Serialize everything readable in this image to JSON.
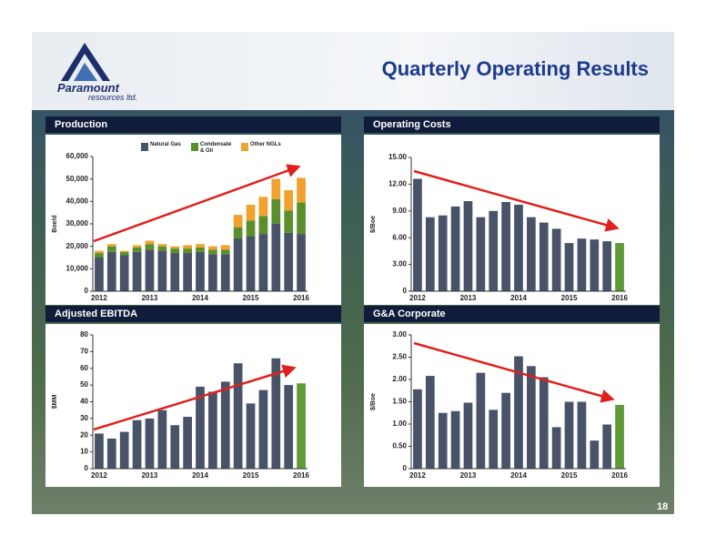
{
  "header": {
    "title": "Quarterly Operating Results",
    "logo_name": "Paramount",
    "logo_sub": "resources ltd."
  },
  "page_number": "18",
  "chart_data": [
    {
      "type": "stacked_bar",
      "title": "Production",
      "y_label": "Boe/d",
      "categories": [
        "2012",
        null,
        null,
        null,
        "2013",
        null,
        null,
        null,
        "2014",
        null,
        null,
        null,
        "2015",
        null,
        null,
        null,
        "2016"
      ],
      "series": [
        {
          "name": "Natural Gas",
          "color": "#48536a",
          "values": [
            15000,
            17500,
            16000,
            17500,
            18500,
            18000,
            17000,
            17000,
            17500,
            16500,
            16500,
            23500,
            24500,
            25500,
            30000,
            26000,
            25500
          ]
        },
        {
          "name": "Condensate & Oil",
          "color": "#5b8f2c",
          "values": [
            2000,
            2500,
            1500,
            2000,
            2500,
            2000,
            2000,
            2000,
            2000,
            2000,
            2000,
            5000,
            7000,
            8000,
            11000,
            10000,
            14000
          ]
        },
        {
          "name": "Other NGLs",
          "color": "#f0a12e",
          "values": [
            1000,
            1000,
            500,
            1000,
            1500,
            1000,
            1000,
            1500,
            1500,
            1500,
            2000,
            5500,
            7000,
            8500,
            9000,
            9000,
            11000
          ]
        }
      ],
      "ylim": [
        0,
        60000
      ],
      "yticks": [
        0,
        {
          "value": 10000,
          "label": "10,000"
        },
        {
          "value": 20000,
          "label": "20,000"
        },
        {
          "value": 30000,
          "label": "30,000"
        },
        {
          "value": 40000,
          "label": "40,000"
        },
        {
          "value": 50000,
          "label": "50,000"
        },
        {
          "value": 60000,
          "label": "60,000"
        }
      ],
      "grid": false
    },
    {
      "type": "bar",
      "title": "Operating Costs",
      "y_label": "$/Boe",
      "categories": [
        "2012",
        null,
        null,
        null,
        "2013",
        null,
        null,
        null,
        "2014",
        null,
        null,
        null,
        "2015",
        null,
        null,
        null,
        "2016"
      ],
      "values": [
        12.6,
        8.3,
        8.5,
        9.5,
        10.1,
        8.3,
        9.0,
        10.0,
        9.7,
        8.3,
        7.7,
        7.0,
        5.4,
        5.9,
        5.8,
        5.6,
        5.4
      ],
      "colors": [
        "#48536a",
        "#48536a",
        "#48536a",
        "#48536a",
        "#48536a",
        "#48536a",
        "#48536a",
        "#48536a",
        "#48536a",
        "#48536a",
        "#48536a",
        "#48536a",
        "#48536a",
        "#48536a",
        "#48536a",
        "#48536a",
        "#5f9a35"
      ],
      "ylim": [
        0,
        15
      ],
      "yticks": [
        0,
        {
          "value": 3,
          "label": "3.00"
        },
        {
          "value": 6,
          "label": "6.00"
        },
        {
          "value": 9,
          "label": "9.00"
        },
        {
          "value": 12,
          "label": "12.00"
        },
        {
          "value": 15,
          "label": "15.00"
        }
      ],
      "grid": false
    },
    {
      "type": "bar",
      "title": "Adjusted EBITDA",
      "y_label": "$MM",
      "categories": [
        "2012",
        null,
        null,
        null,
        "2013",
        null,
        null,
        null,
        "2014",
        null,
        null,
        null,
        "2015",
        null,
        null,
        null,
        "2016"
      ],
      "values": [
        21,
        18,
        22,
        29,
        30,
        35,
        26,
        31,
        49,
        46,
        52,
        63,
        39,
        47,
        66,
        50,
        51
      ],
      "colors": [
        "#48536a",
        "#48536a",
        "#48536a",
        "#48536a",
        "#48536a",
        "#48536a",
        "#48536a",
        "#48536a",
        "#48536a",
        "#48536a",
        "#48536a",
        "#48536a",
        "#48536a",
        "#48536a",
        "#48536a",
        "#48536a",
        "#5f9a35"
      ],
      "ylim": [
        0,
        80
      ],
      "yticks": [
        0,
        10,
        20,
        30,
        40,
        50,
        60,
        70,
        80
      ],
      "grid": false
    },
    {
      "type": "bar",
      "title": "G&A Corporate",
      "y_label": "$/Boe",
      "categories": [
        "2012",
        null,
        null,
        null,
        "2013",
        null,
        null,
        null,
        "2014",
        null,
        null,
        null,
        "2015",
        null,
        null,
        null,
        "2016"
      ],
      "values": [
        1.78,
        2.08,
        1.25,
        1.29,
        1.48,
        2.15,
        1.32,
        1.7,
        2.52,
        2.3,
        2.05,
        0.93,
        1.5,
        1.5,
        0.63,
        0.99,
        1.43
      ],
      "colors": [
        "#48536a",
        "#48536a",
        "#48536a",
        "#48536a",
        "#48536a",
        "#48536a",
        "#48536a",
        "#48536a",
        "#48536a",
        "#48536a",
        "#48536a",
        "#48536a",
        "#48536a",
        "#48536a",
        "#48536a",
        "#48536a",
        "#5f9a35"
      ],
      "ylim": [
        0,
        3
      ],
      "yticks": [
        0,
        {
          "value": 0.5,
          "label": "0.50"
        },
        {
          "value": 1,
          "label": "1.00"
        },
        {
          "value": 1.5,
          "label": "1.50"
        },
        {
          "value": 2,
          "label": "2.00"
        },
        {
          "value": 2.5,
          "label": "2.50"
        },
        {
          "value": 3,
          "label": "3.00"
        }
      ],
      "grid": false
    }
  ]
}
